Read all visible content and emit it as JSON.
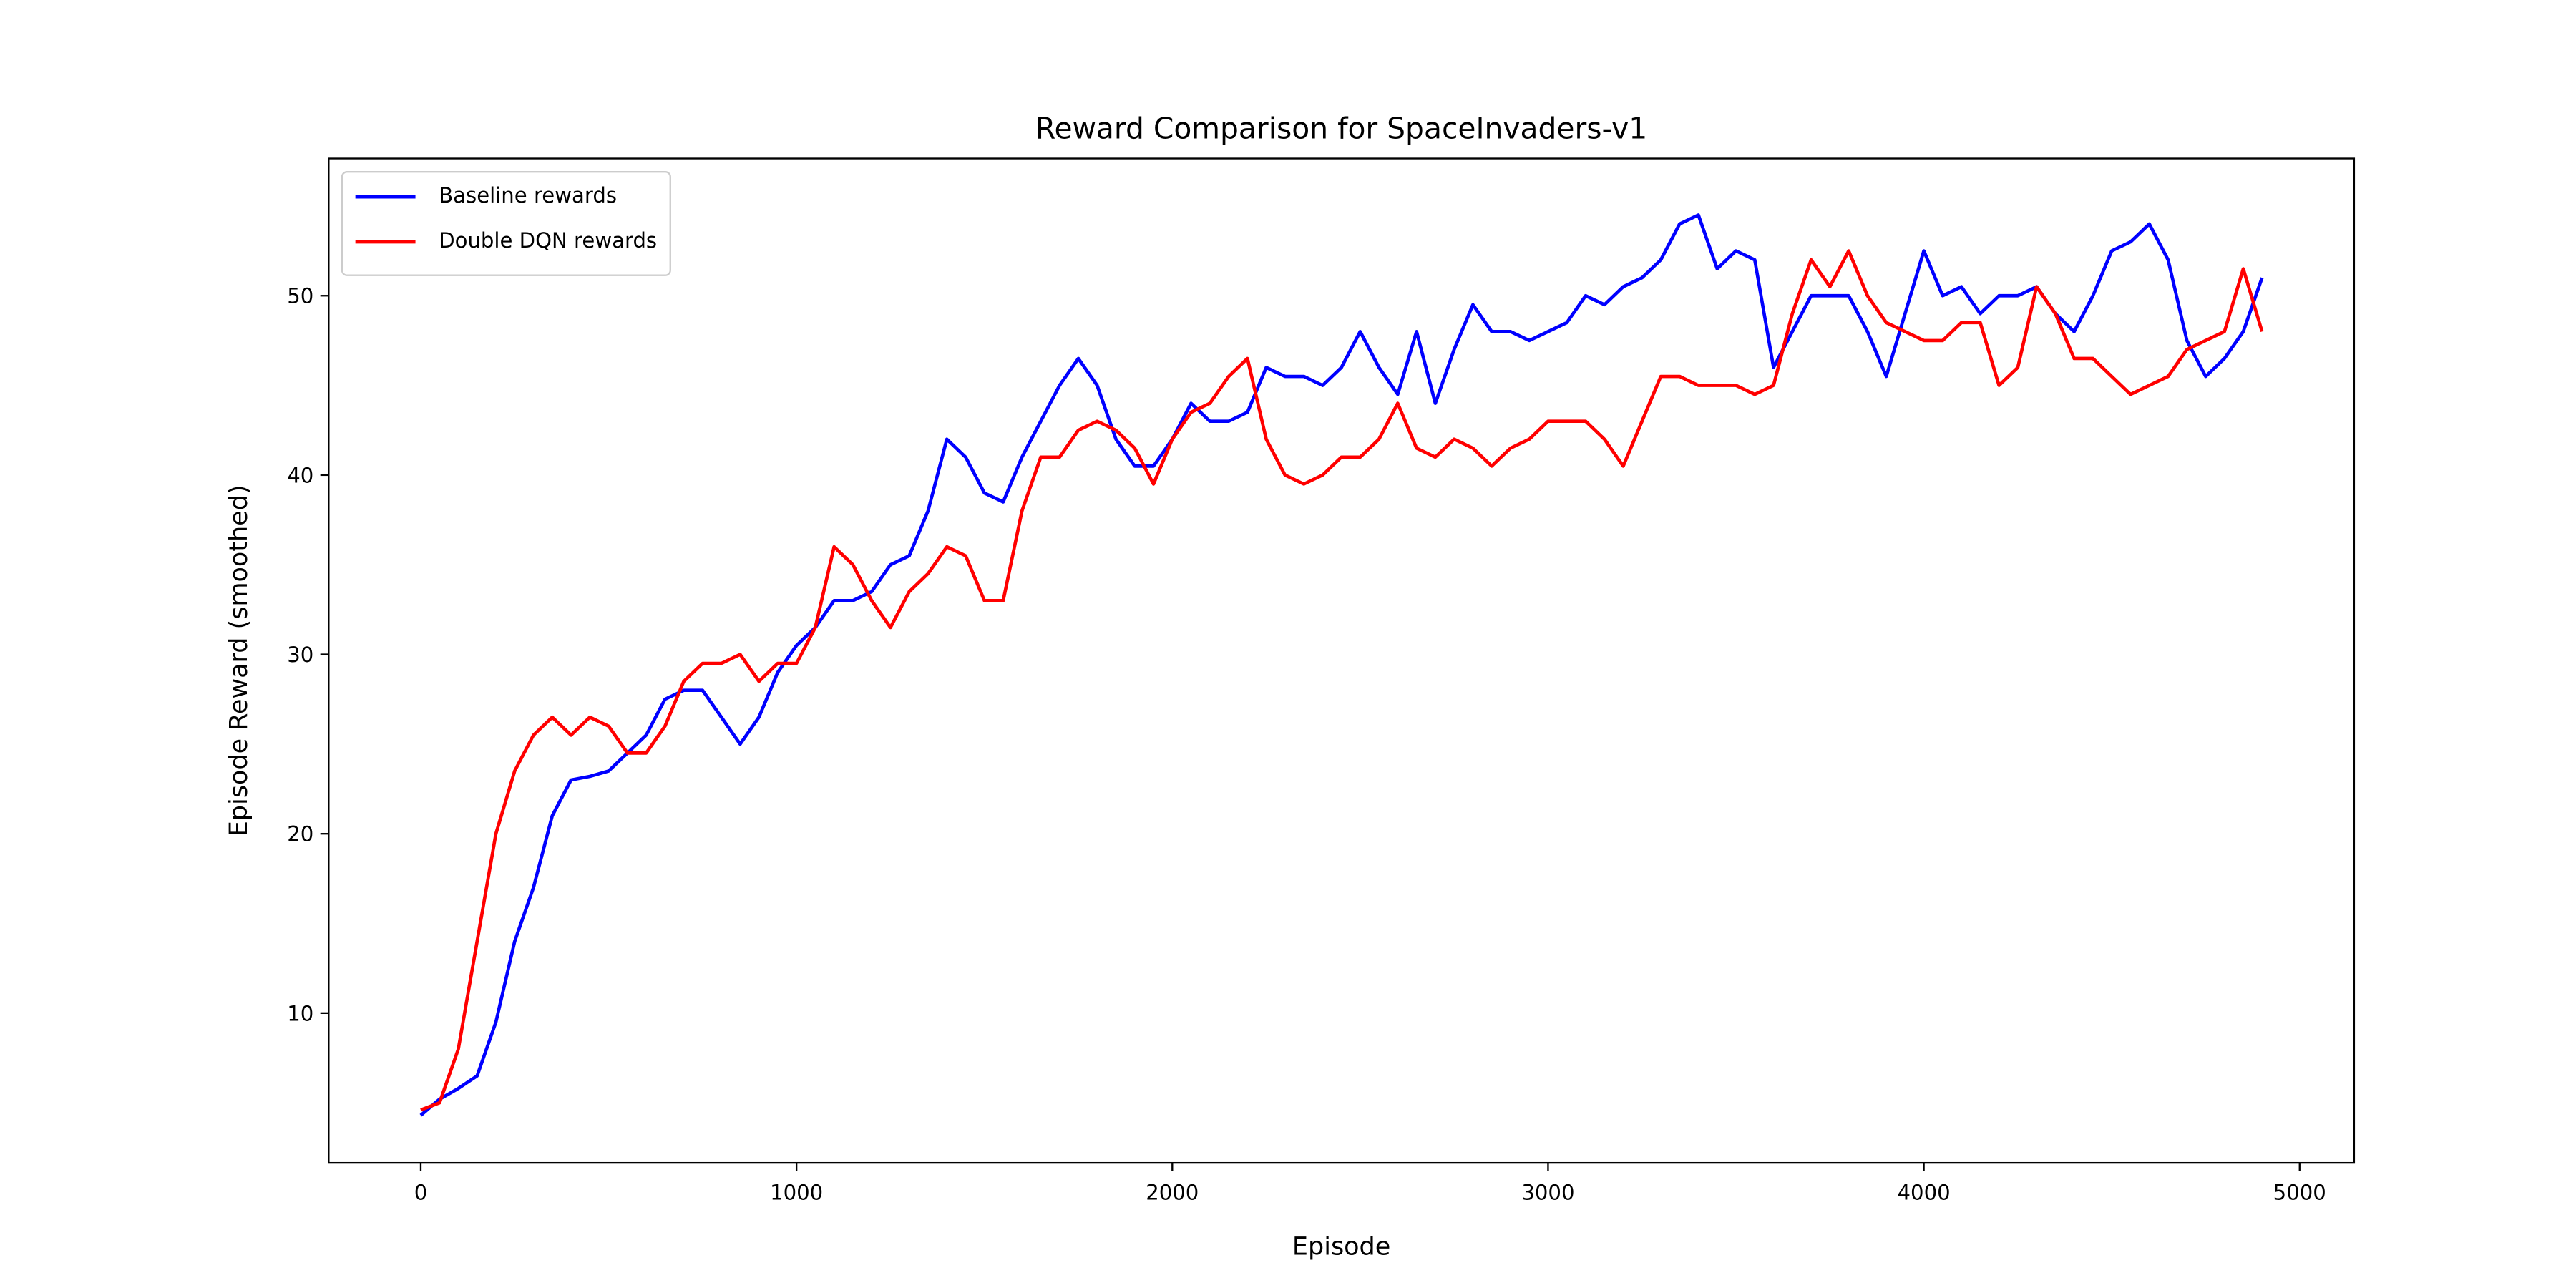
{
  "chart_data": {
    "type": "line",
    "title": "Reward Comparison for SpaceInvaders-v1",
    "x_label": "Episode",
    "y_label": "Episode Reward (smoothed)",
    "x": [
      0,
      50,
      100,
      150,
      200,
      250,
      300,
      350,
      400,
      450,
      500,
      550,
      600,
      650,
      700,
      750,
      800,
      850,
      900,
      950,
      1000,
      1050,
      1100,
      1150,
      1200,
      1250,
      1300,
      1350,
      1400,
      1450,
      1500,
      1550,
      1600,
      1650,
      1700,
      1750,
      1800,
      1850,
      1900,
      1950,
      2000,
      2050,
      2100,
      2150,
      2200,
      2250,
      2300,
      2350,
      2400,
      2450,
      2500,
      2550,
      2600,
      2650,
      2700,
      2750,
      2800,
      2850,
      2900,
      2950,
      3000,
      3050,
      3100,
      3150,
      3200,
      3250,
      3300,
      3350,
      3400,
      3450,
      3500,
      3550,
      3600,
      3650,
      3700,
      3750,
      3800,
      3850,
      3900,
      3950,
      4000,
      4050,
      4100,
      4150,
      4200,
      4250,
      4300,
      4350,
      4400,
      4450,
      4500,
      4550,
      4600,
      4650,
      4700,
      4750,
      4800,
      4850,
      4900
    ],
    "series": [
      {
        "name": "Baseline rewards",
        "color": "#0000ff",
        "values": [
          4.3,
          5.2,
          5.8,
          6.5,
          9.5,
          14,
          17,
          21,
          23,
          23.2,
          23.5,
          24.5,
          25.5,
          27.5,
          28,
          28,
          26.5,
          25,
          26.5,
          29,
          30.5,
          31.5,
          33,
          33,
          33.5,
          35,
          35.5,
          38,
          42,
          41,
          39,
          38.5,
          41,
          43,
          45,
          46.5,
          45,
          42,
          40.5,
          40.5,
          42,
          44,
          43,
          43,
          43.5,
          46,
          45.5,
          45.5,
          45,
          46,
          48,
          46,
          44.5,
          48,
          44,
          47,
          49.5,
          48,
          48,
          47.5,
          48,
          48.5,
          50,
          49.5,
          50.5,
          51,
          52,
          54,
          54.5,
          51.5,
          52.5,
          52,
          46,
          48,
          50,
          50,
          50,
          48,
          45.5,
          49,
          52.5,
          50,
          50.5,
          49,
          50,
          50,
          50.5,
          49,
          48,
          50,
          52.5,
          53,
          54,
          52,
          47.5,
          45.5,
          46.5,
          48,
          51
        ]
      },
      {
        "name": "Double DQN rewards",
        "color": "#ff0000",
        "values": [
          4.6,
          5,
          8,
          14,
          20,
          23.5,
          25.5,
          26.5,
          25.5,
          26.5,
          26,
          24.5,
          24.5,
          26,
          28.5,
          29.5,
          29.5,
          30,
          28.5,
          29.5,
          29.5,
          31.5,
          36,
          35,
          33,
          31.5,
          33.5,
          34.5,
          36,
          35.5,
          33,
          33,
          38,
          41,
          41,
          42.5,
          43,
          42.5,
          41.5,
          39.5,
          42,
          43.5,
          44,
          45.5,
          46.5,
          42,
          40,
          39.5,
          40,
          41,
          41,
          42,
          44,
          41.5,
          41,
          42,
          41.5,
          40.5,
          41.5,
          42,
          43,
          43,
          43,
          42,
          40.5,
          43,
          45.5,
          45.5,
          45,
          45,
          45,
          44.5,
          45,
          49,
          52,
          50.5,
          52.5,
          50,
          48.5,
          48,
          47.5,
          47.5,
          48.5,
          48.5,
          45,
          46,
          50.5,
          49,
          46.5,
          46.5,
          45.5,
          44.5,
          45,
          45.5,
          47,
          47.5,
          48,
          51.5,
          48
        ]
      }
    ],
    "xlim": [
      -245,
      5145
    ],
    "ylim": [
      1.65,
      57.65
    ],
    "xticks": [
      0,
      1000,
      2000,
      3000,
      4000,
      5000
    ],
    "yticks": [
      10,
      20,
      30,
      40,
      50
    ],
    "legend": "upper left",
    "grid": false
  }
}
